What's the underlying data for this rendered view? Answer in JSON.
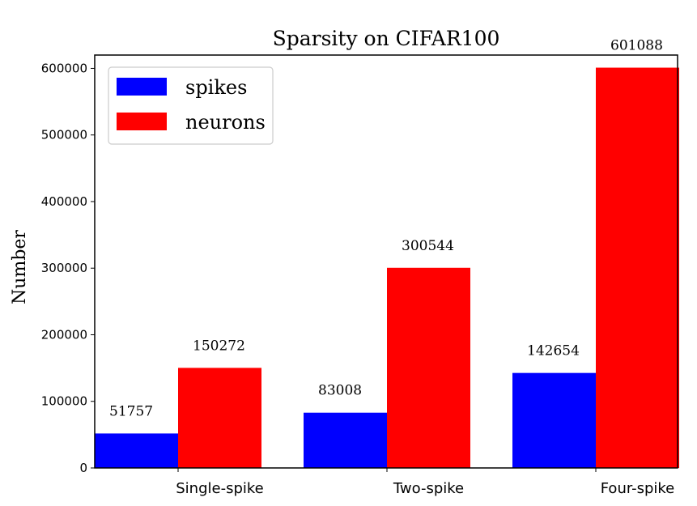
{
  "chart_data": {
    "type": "bar",
    "title": "Sparsity on CIFAR100",
    "xlabel": "",
    "ylabel": "Number",
    "categories": [
      "Single-spike",
      "Two-spike",
      "Four-spike"
    ],
    "series": [
      {
        "name": "spikes",
        "color": "#0000ff",
        "values": [
          51757,
          83008,
          142654
        ]
      },
      {
        "name": "neurons",
        "color": "#ff0000",
        "values": [
          150272,
          300544,
          601088
        ]
      }
    ],
    "data_labels": [
      [
        "51757",
        "83008",
        "142654"
      ],
      [
        "150272",
        "300544",
        "601088"
      ]
    ],
    "ylim": [
      0,
      620000
    ],
    "yticks": [
      0,
      100000,
      200000,
      300000,
      400000,
      500000,
      600000
    ],
    "ytick_labels": [
      "0",
      "100000",
      "200000",
      "300000",
      "400000",
      "500000",
      "600000"
    ],
    "legend_position": "top-left",
    "grid": false
  }
}
